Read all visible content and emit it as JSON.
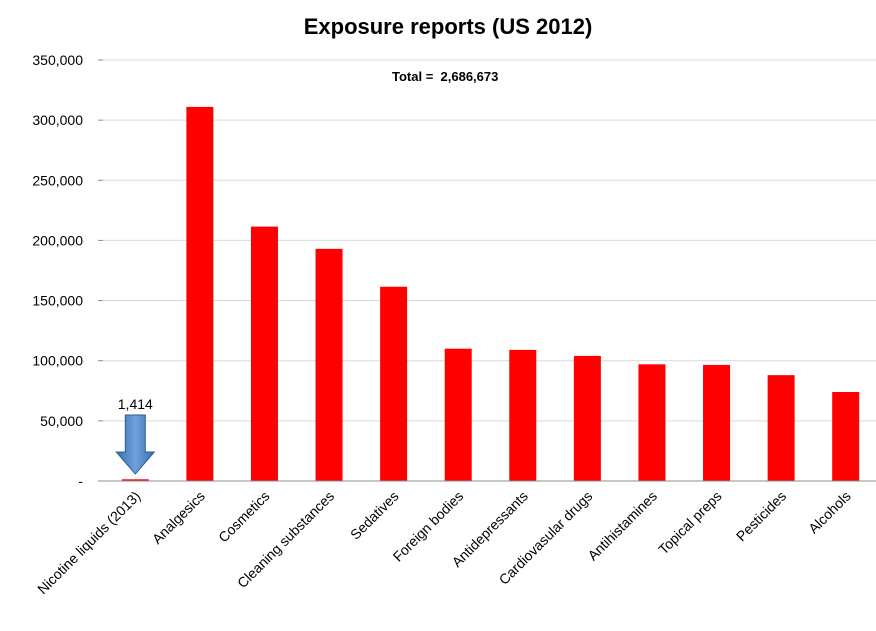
{
  "chart_data": {
    "type": "bar",
    "title": "Exposure reports (US 2012)",
    "annotation": "Total =  2,686,673",
    "categories": [
      "Nicotine liquids (2013)",
      "Analgesics",
      "Cosmetics",
      "Cleaning substances",
      "Sedatives",
      "Foreign bodies",
      "Antidepressants",
      "Cardiovasular drugs",
      "Antihistamines",
      "Topical preps",
      "Pesticides",
      "Alcohols"
    ],
    "values": [
      1414,
      311000,
      211500,
      193000,
      161500,
      110000,
      109000,
      104000,
      97000,
      96500,
      88000,
      74000
    ],
    "data_labels": [
      "1,414",
      "",
      "",
      "",
      "",
      "",
      "",
      "",
      "",
      "",
      "",
      ""
    ],
    "ylim": [
      0,
      350000
    ],
    "yticks": [
      {
        "value": 0,
        "label": "-"
      },
      {
        "value": 50000,
        "label": "50,000"
      },
      {
        "value": 100000,
        "label": "100,000"
      },
      {
        "value": 150000,
        "label": "150,000"
      },
      {
        "value": 200000,
        "label": "200,000"
      },
      {
        "value": 250000,
        "label": "250,000"
      },
      {
        "value": 300000,
        "label": "300,000"
      },
      {
        "value": 350000,
        "label": "350,000"
      }
    ],
    "xlabel": "",
    "ylabel": "",
    "grid": true,
    "legend": "none",
    "bar_color": "#ff0000",
    "highlight_arrow": {
      "category_index": 0,
      "color": "#4a7ebb",
      "direction": "down",
      "icon": "arrow-down-icon"
    }
  }
}
